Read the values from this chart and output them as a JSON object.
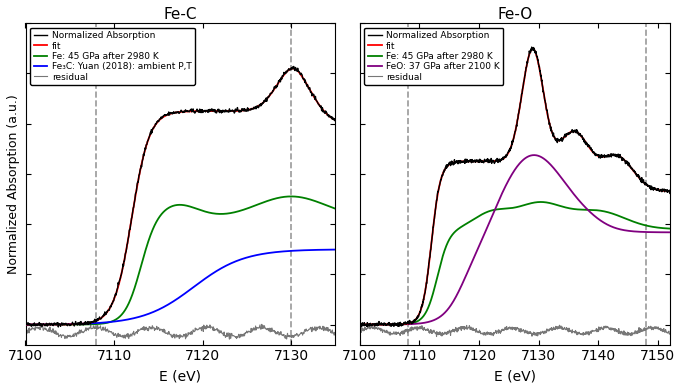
{
  "panel_left": {
    "title": "Fe-C",
    "xlim": [
      7100,
      7135
    ],
    "xticks": [
      7100,
      7110,
      7120,
      7130
    ],
    "vlines": [
      7108,
      7130
    ],
    "legend_labels": [
      "Normalized Absorption",
      "fit",
      "Fe: 45 GPa after 2980 K",
      "Fe₃C: Yuan (2018): ambient P,T",
      "residual"
    ],
    "legend_colors": [
      "#000000",
      "#ff0000",
      "#008000",
      "#0000ff",
      "#777777"
    ]
  },
  "panel_right": {
    "title": "Fe-O",
    "xlim": [
      7100,
      7152
    ],
    "xticks": [
      7100,
      7110,
      7120,
      7130,
      7140,
      7150
    ],
    "vlines": [
      7108,
      7148
    ],
    "legend_labels": [
      "Normalized Absorption",
      "fit",
      "Fe: 45 GPa after 2980 K",
      "FeO: 37 GPa after 2100 K",
      "residual"
    ],
    "legend_colors": [
      "#000000",
      "#ff0000",
      "#008000",
      "#800080",
      "#777777"
    ]
  },
  "ylabel": "Normalized Absorption (a.u.)",
  "xlabel": "E (eV)"
}
